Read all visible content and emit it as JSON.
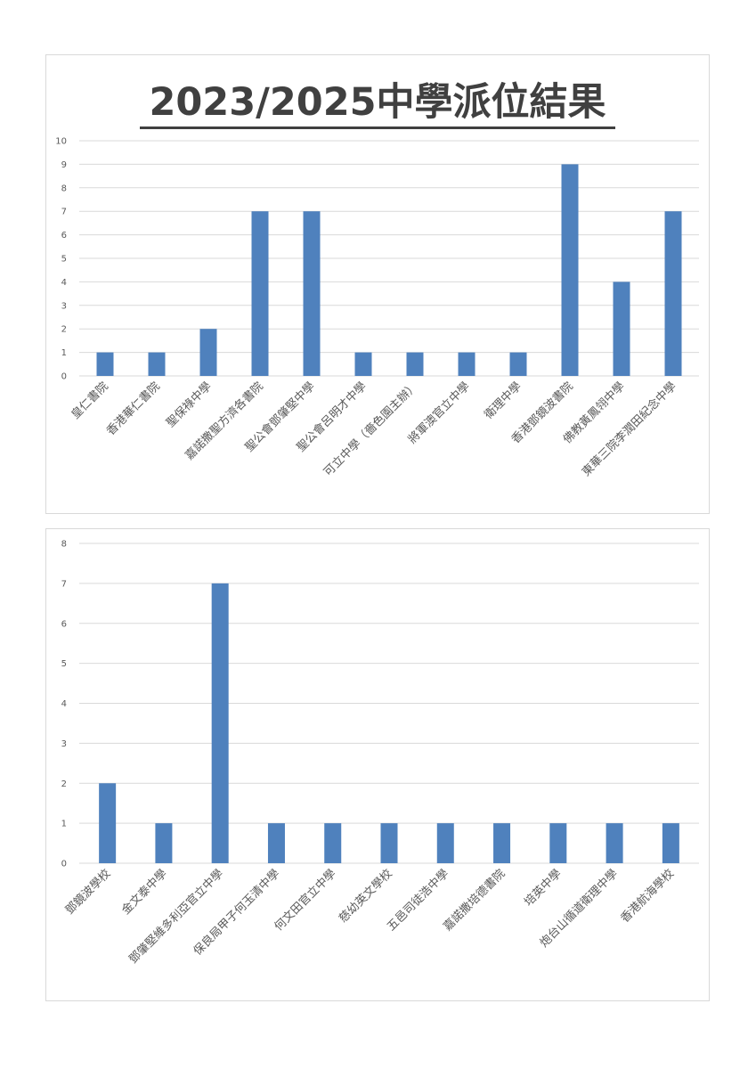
{
  "page_title": "2023/2025中學派位結果",
  "colors": {
    "bar": "#4f81bd",
    "grid": "#d9d9d9",
    "text": "#595959"
  },
  "chart_data": [
    {
      "type": "bar",
      "title": "2023/2025中學派位結果",
      "categories": [
        "皇仁書院",
        "香港華仁書院",
        "聖保祿中學",
        "嘉諾撒聖方濟各書院",
        "聖公會鄧肇堅中學",
        "聖公會呂明才中學",
        "可立中學（嗇色園主辦）",
        "將軍澳官立中學",
        "衛理中學",
        "香港鄧鏡波書院",
        "佛教黃鳳翎中學",
        "東華三院李潤田紀念中學"
      ],
      "values": [
        1,
        1,
        2,
        7,
        7,
        1,
        1,
        1,
        1,
        9,
        4,
        7
      ],
      "ylim": [
        0,
        10
      ],
      "yticks": [
        0,
        1,
        2,
        3,
        4,
        5,
        6,
        7,
        8,
        9,
        10
      ],
      "grid": true
    },
    {
      "type": "bar",
      "categories": [
        "鄧鏡波學校",
        "金文泰中學",
        "鄧肇堅維多利亞官立中學",
        "保良局甲子何玉清中學",
        "何文田官立中學",
        "慈幼英文學校",
        "五邑司徒浩中學",
        "嘉諾撒培德書院",
        "培英中學",
        "炮台山循道衛理中學",
        "香港航海學校"
      ],
      "values": [
        2,
        1,
        7,
        1,
        1,
        1,
        1,
        1,
        1,
        1,
        1
      ],
      "ylim": [
        0,
        8
      ],
      "yticks": [
        0,
        1,
        2,
        3,
        4,
        5,
        6,
        7,
        8
      ],
      "grid": true
    }
  ]
}
